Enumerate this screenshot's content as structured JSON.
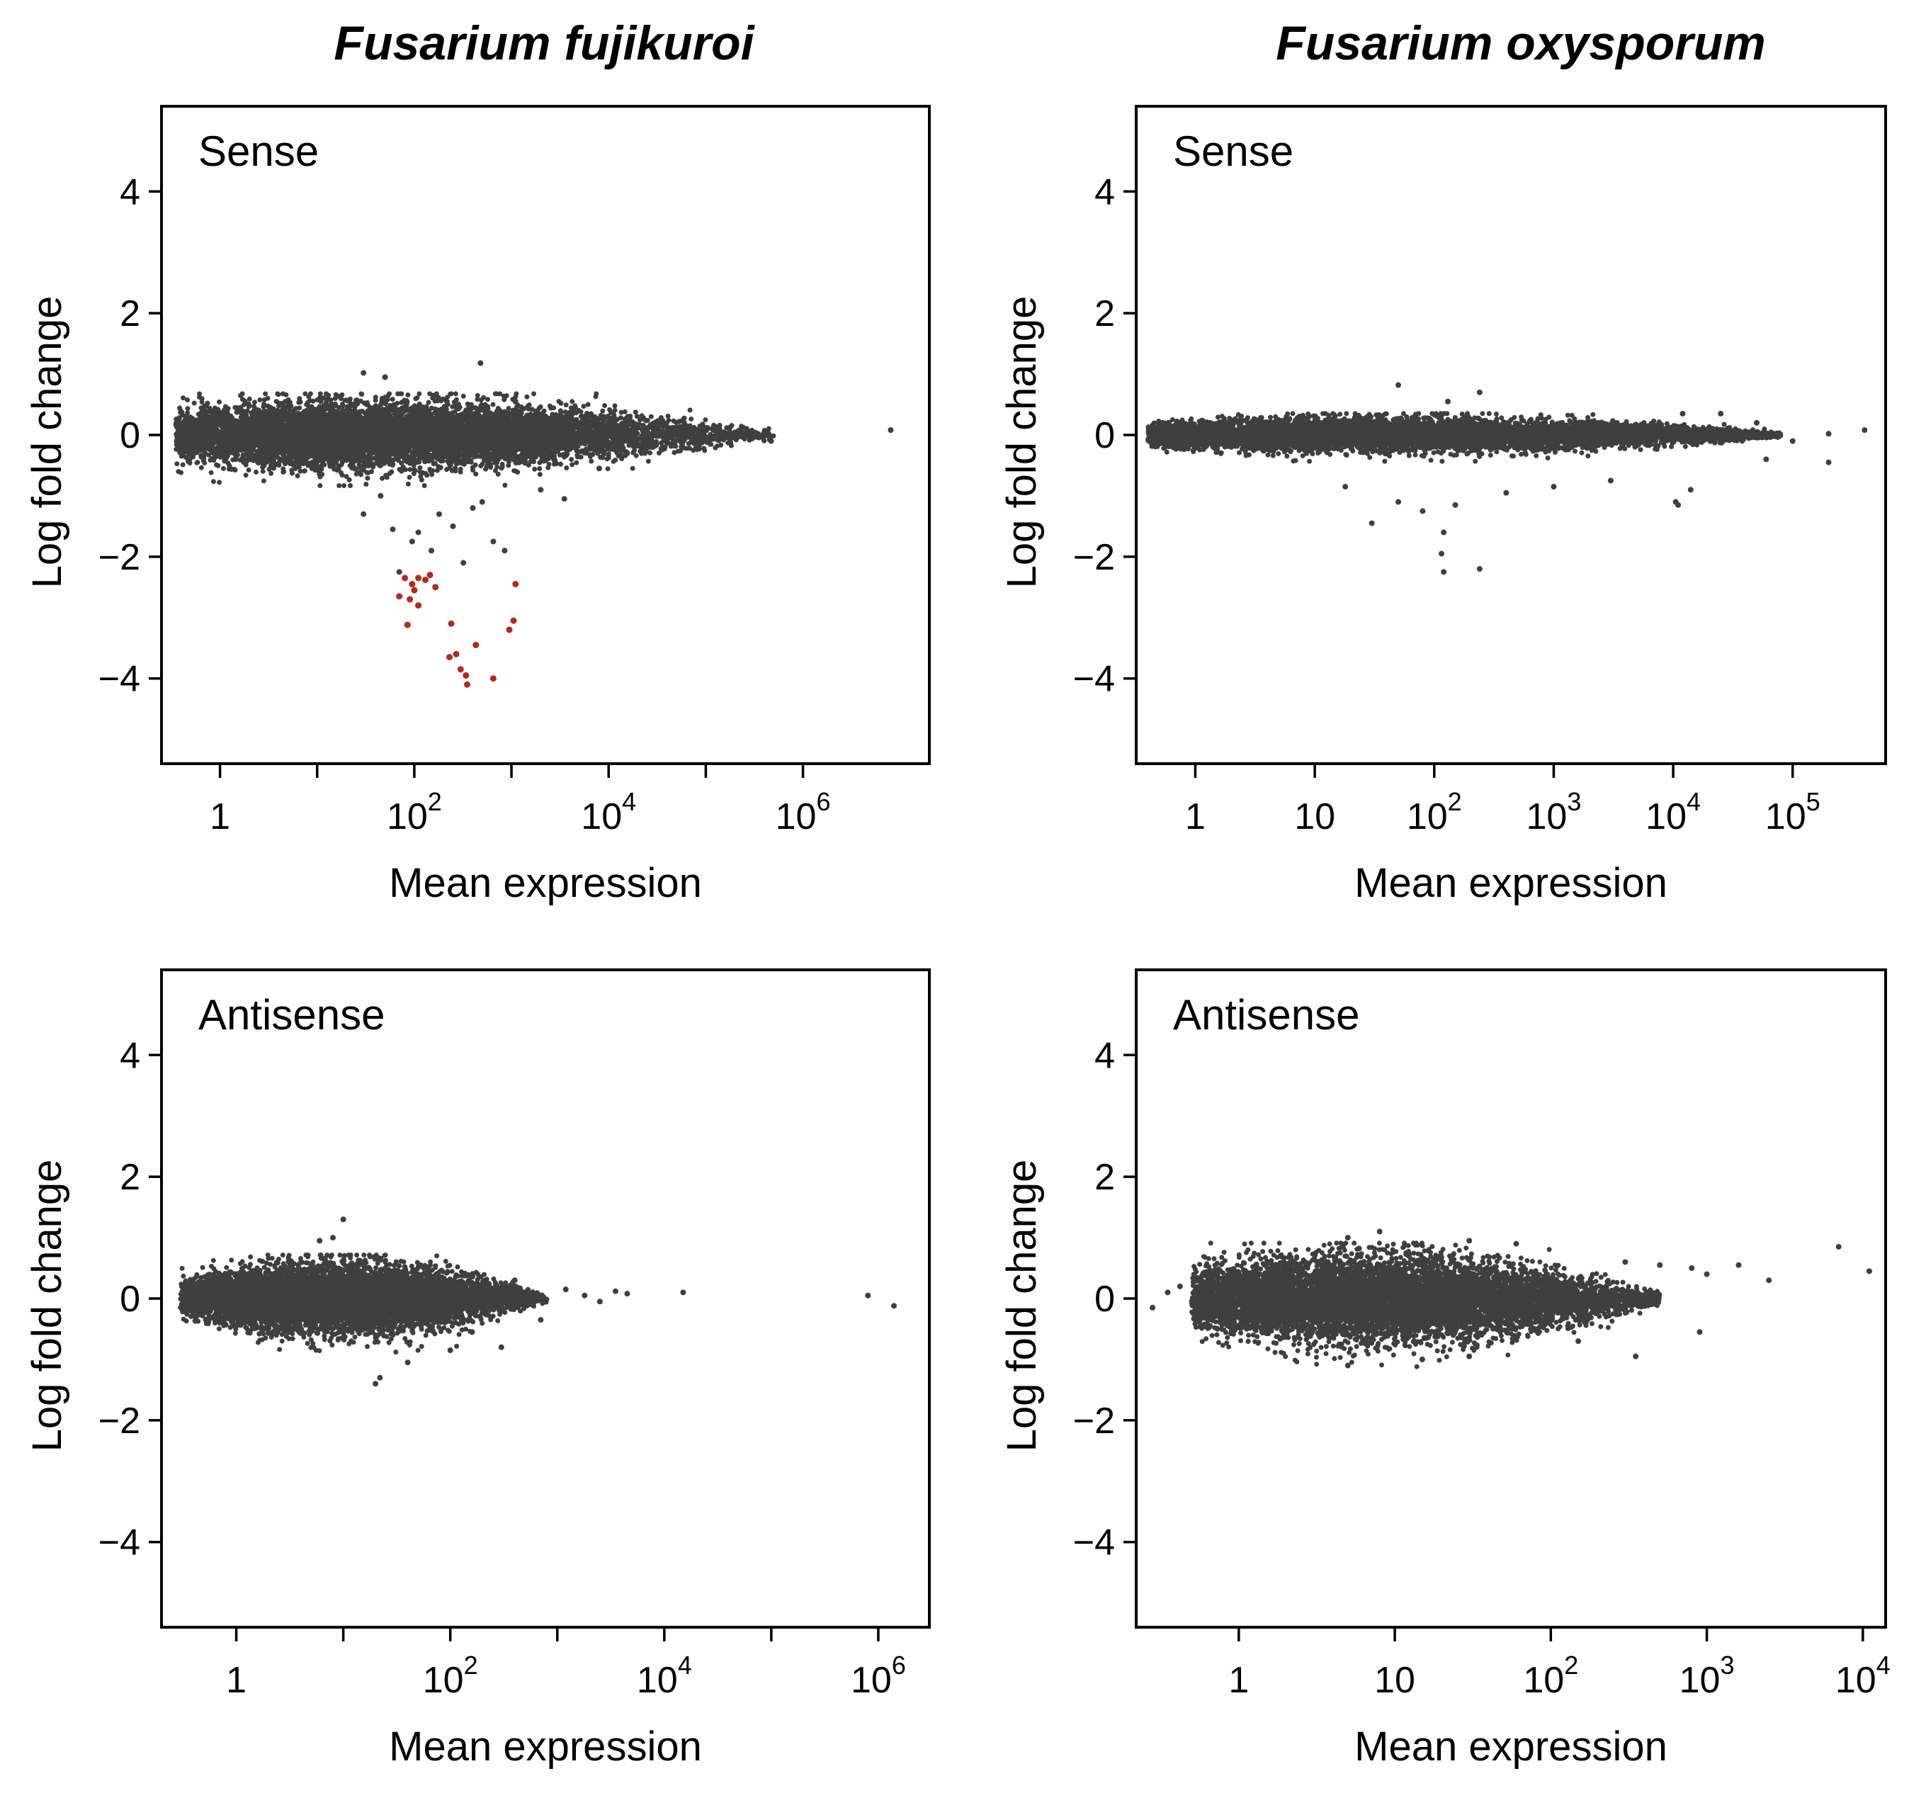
{
  "figure": {
    "column_titles": [
      "Fusarium fujikuroi",
      "Fusarium oxysporum"
    ]
  },
  "colors": {
    "points": "#3f3f3f",
    "highlight": "#b5281c",
    "axis": "#000000",
    "background": "#ffffff"
  },
  "chart_data": [
    {
      "id": "ff-sense",
      "type": "scatter",
      "column": "Fusarium fujikuroi",
      "panel_label": "Sense",
      "xlabel": "Mean expression",
      "ylabel": "Log fold change",
      "xscale": "log10",
      "xlim": [
        0.25,
        20000000
      ],
      "ylim": [
        -5.4,
        5.4
      ],
      "yticks": [
        -4,
        -2,
        0,
        2,
        4
      ],
      "xticks_major": [
        1,
        100,
        10000,
        1000000
      ],
      "xticks_minor": [
        10,
        1000,
        100000
      ],
      "xtick_labels": [
        {
          "base": "1",
          "exp": ""
        },
        {
          "base": "10",
          "exp": "2"
        },
        {
          "base": "10",
          "exp": "4"
        },
        {
          "base": "10",
          "exp": "6"
        }
      ],
      "cloud": {
        "n": 9000,
        "xrange": [
          0.35,
          500000
        ],
        "center": 40,
        "max_spread": 0.52,
        "spread_width": 1.7
      },
      "outliers": [
        {
          "x": 30,
          "y": 1.02
        },
        {
          "x": 50,
          "y": 0.95
        },
        {
          "x": 480,
          "y": 1.18
        },
        {
          "x": 1100,
          "y": 0.55
        },
        {
          "x": 6000,
          "y": 0.35
        },
        {
          "x": 17000,
          "y": 0.22
        },
        {
          "x": 30000,
          "y": 0.1
        },
        {
          "x": 110000,
          "y": -0.05
        },
        {
          "x": 300000,
          "y": 0.05
        },
        {
          "x": 470000,
          "y": -0.1
        },
        {
          "x": 8000000,
          "y": 0.08
        },
        {
          "x": 3500,
          "y": -1.05
        },
        {
          "x": 8000,
          "y": -0.55
        },
        {
          "x": 30,
          "y": -1.3
        },
        {
          "x": 60,
          "y": -1.55
        },
        {
          "x": 95,
          "y": -1.75
        },
        {
          "x": 150,
          "y": -1.9
        },
        {
          "x": 250,
          "y": -1.5
        },
        {
          "x": 400,
          "y": -1.2
        },
        {
          "x": 650,
          "y": -1.75
        },
        {
          "x": 850,
          "y": -1.9
        },
        {
          "x": 70,
          "y": -2.25
        },
        {
          "x": 110,
          "y": -1.6
        },
        {
          "x": 180,
          "y": -1.3
        },
        {
          "x": 45,
          "y": -1.0
        },
        {
          "x": 320,
          "y": -2.1
        },
        {
          "x": 500,
          "y": -1.1
        },
        {
          "x": 2000,
          "y": -0.9
        }
      ],
      "highlighted": [
        {
          "x": 80,
          "y": -2.35
        },
        {
          "x": 95,
          "y": -2.45
        },
        {
          "x": 110,
          "y": -2.35
        },
        {
          "x": 130,
          "y": -2.38
        },
        {
          "x": 145,
          "y": -2.3
        },
        {
          "x": 165,
          "y": -2.5
        },
        {
          "x": 70,
          "y": -2.65
        },
        {
          "x": 90,
          "y": -2.7
        },
        {
          "x": 100,
          "y": -2.55
        },
        {
          "x": 110,
          "y": -2.8
        },
        {
          "x": 85,
          "y": -3.12
        },
        {
          "x": 240,
          "y": -3.1
        },
        {
          "x": 270,
          "y": -3.6
        },
        {
          "x": 230,
          "y": -3.65
        },
        {
          "x": 300,
          "y": -3.85
        },
        {
          "x": 340,
          "y": -3.95
        },
        {
          "x": 350,
          "y": -4.1
        },
        {
          "x": 430,
          "y": -3.45
        },
        {
          "x": 650,
          "y": -4.0
        },
        {
          "x": 1100,
          "y": -2.45
        },
        {
          "x": 1050,
          "y": -3.05
        },
        {
          "x": 950,
          "y": -3.2
        }
      ]
    },
    {
      "id": "fo-sense",
      "type": "scatter",
      "column": "Fusarium oxysporum",
      "panel_label": "Sense",
      "xlabel": "Mean expression",
      "ylabel": "Log fold change",
      "xscale": "log10",
      "xlim": [
        0.32,
        600000
      ],
      "ylim": [
        -5.4,
        5.4
      ],
      "yticks": [
        -4,
        -2,
        0,
        2,
        4
      ],
      "xticks_major": [
        1,
        10,
        100,
        1000,
        10000,
        100000
      ],
      "xticks_minor": [],
      "xtick_labels": [
        {
          "base": "1",
          "exp": ""
        },
        {
          "base": "10",
          "exp": ""
        },
        {
          "base": "10",
          "exp": "2"
        },
        {
          "base": "10",
          "exp": "3"
        },
        {
          "base": "10",
          "exp": "4"
        },
        {
          "base": "10",
          "exp": "5"
        }
      ],
      "cloud": {
        "n": 9000,
        "xrange": [
          0.4,
          80000
        ],
        "center": 40,
        "max_spread": 0.27,
        "spread_width": 2.2
      },
      "outliers": [
        {
          "x": 50,
          "y": 0.82
        },
        {
          "x": 240,
          "y": 0.7
        },
        {
          "x": 130,
          "y": 0.55
        },
        {
          "x": 12000,
          "y": 0.35
        },
        {
          "x": 25000,
          "y": 0.35
        },
        {
          "x": 50000,
          "y": 0.2
        },
        {
          "x": 100000,
          "y": -0.1
        },
        {
          "x": 200000,
          "y": 0.02
        },
        {
          "x": 400000,
          "y": 0.08
        },
        {
          "x": 200000,
          "y": -0.45
        },
        {
          "x": 60000,
          "y": -0.4
        },
        {
          "x": 14000,
          "y": -0.9
        },
        {
          "x": 11000,
          "y": -1.15
        },
        {
          "x": 10500,
          "y": -1.1
        },
        {
          "x": 120,
          "y": -1.6
        },
        {
          "x": 115,
          "y": -1.95
        },
        {
          "x": 120,
          "y": -2.25
        },
        {
          "x": 240,
          "y": -2.2
        },
        {
          "x": 30,
          "y": -1.45
        },
        {
          "x": 50,
          "y": -1.1
        },
        {
          "x": 80,
          "y": -1.25
        },
        {
          "x": 150,
          "y": -1.15
        },
        {
          "x": 400,
          "y": -0.95
        },
        {
          "x": 1000,
          "y": -0.85
        },
        {
          "x": 3000,
          "y": -0.75
        },
        {
          "x": 18,
          "y": -0.85
        }
      ],
      "highlighted": []
    },
    {
      "id": "ff-antisense",
      "type": "scatter",
      "column": "Fusarium fujikuroi",
      "panel_label": "Antisense",
      "xlabel": "Mean expression",
      "ylabel": "Log fold change",
      "xscale": "log10",
      "xlim": [
        0.2,
        3000000
      ],
      "ylim": [
        -5.4,
        5.4
      ],
      "yticks": [
        -4,
        -2,
        0,
        2,
        4
      ],
      "xticks_major": [
        1,
        100,
        10000,
        1000000
      ],
      "xticks_minor": [
        10,
        1000,
        100000
      ],
      "xtick_labels": [
        {
          "base": "1",
          "exp": ""
        },
        {
          "base": "10",
          "exp": "2"
        },
        {
          "base": "10",
          "exp": "4"
        },
        {
          "base": "10",
          "exp": "6"
        }
      ],
      "cloud": {
        "n": 8000,
        "xrange": [
          0.3,
          800
        ],
        "center": 8,
        "max_spread": 0.55,
        "spread_width": 0.9
      },
      "outliers": [
        {
          "x": 10,
          "y": 1.3
        },
        {
          "x": 6,
          "y": 0.95
        },
        {
          "x": 8,
          "y": 1.0
        },
        {
          "x": 1200,
          "y": 0.15
        },
        {
          "x": 1800,
          "y": 0.05
        },
        {
          "x": 2500,
          "y": -0.05
        },
        {
          "x": 3500,
          "y": 0.12
        },
        {
          "x": 4500,
          "y": 0.08
        },
        {
          "x": 15000,
          "y": 0.1
        },
        {
          "x": 800000,
          "y": 0.05
        },
        {
          "x": 1400000,
          "y": -0.12
        },
        {
          "x": 20,
          "y": -1.4
        },
        {
          "x": 22,
          "y": -1.3
        },
        {
          "x": 40,
          "y": -1.05
        },
        {
          "x": 100,
          "y": -0.85
        },
        {
          "x": 300,
          "y": -0.8
        },
        {
          "x": 160,
          "y": -0.55
        },
        {
          "x": 400,
          "y": 0.3
        },
        {
          "x": 700,
          "y": -0.35
        }
      ],
      "highlighted": []
    },
    {
      "id": "fo-antisense",
      "type": "scatter",
      "column": "Fusarium oxysporum",
      "panel_label": "Antisense",
      "xlabel": "Mean expression",
      "ylabel": "Log fold change",
      "xscale": "log10",
      "xlim": [
        0.22,
        14000
      ],
      "ylim": [
        -5.4,
        5.4
      ],
      "yticks": [
        -4,
        -2,
        0,
        2,
        4
      ],
      "xticks_major": [
        1,
        10,
        100,
        1000,
        10000
      ],
      "xticks_minor": [],
      "xtick_labels": [
        {
          "base": "1",
          "exp": ""
        },
        {
          "base": "10",
          "exp": ""
        },
        {
          "base": "10",
          "exp": "2"
        },
        {
          "base": "10",
          "exp": "3"
        },
        {
          "base": "10",
          "exp": "4"
        }
      ],
      "cloud": {
        "n": 9000,
        "xrange": [
          0.5,
          500
        ],
        "center": 7,
        "max_spread": 0.7,
        "spread_width": 1.0
      },
      "outliers": [
        {
          "x": 0.28,
          "y": -0.15
        },
        {
          "x": 0.35,
          "y": 0.1
        },
        {
          "x": 0.42,
          "y": 0.2
        },
        {
          "x": 0.5,
          "y": -0.05
        },
        {
          "x": 8,
          "y": 1.1
        },
        {
          "x": 5,
          "y": 1.0
        },
        {
          "x": 30,
          "y": 0.95
        },
        {
          "x": 60,
          "y": 0.9
        },
        {
          "x": 300,
          "y": 0.6
        },
        {
          "x": 500,
          "y": 0.55
        },
        {
          "x": 800,
          "y": 0.5
        },
        {
          "x": 1000,
          "y": 0.4
        },
        {
          "x": 1600,
          "y": 0.55
        },
        {
          "x": 2500,
          "y": 0.3
        },
        {
          "x": 7000,
          "y": 0.85
        },
        {
          "x": 11000,
          "y": 0.45
        },
        {
          "x": 900,
          "y": -0.55
        },
        {
          "x": 350,
          "y": -0.95
        },
        {
          "x": 150,
          "y": -0.7
        },
        {
          "x": 5,
          "y": -1.1
        },
        {
          "x": 15,
          "y": -1.0
        },
        {
          "x": 30,
          "y": -0.95
        }
      ],
      "highlighted": []
    }
  ]
}
